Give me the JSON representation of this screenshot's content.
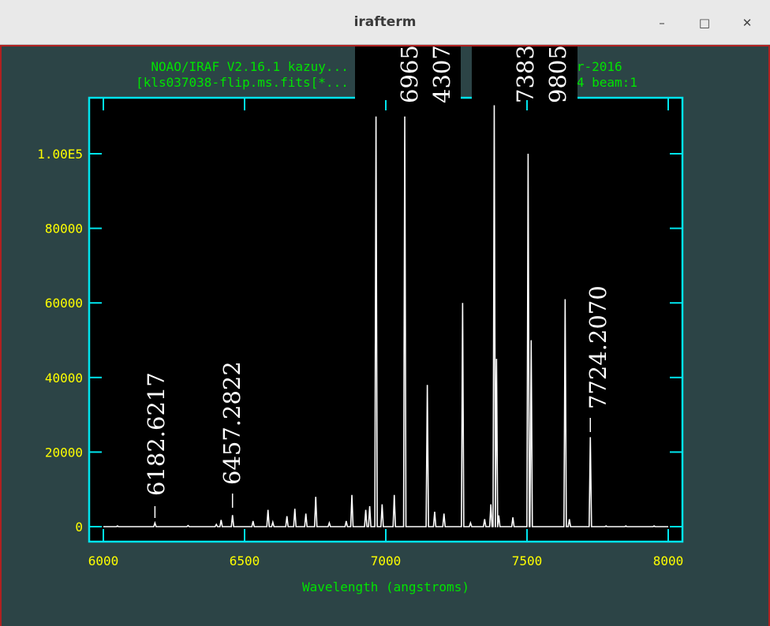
{
  "window": {
    "title": "irafterm",
    "minimize_icon": "minimize-icon",
    "maximize_icon": "maximize-icon",
    "close_icon": "close-icon"
  },
  "colors": {
    "terminal_bg": "#2c4446",
    "plot_bg": "#000000",
    "frame": "#00e5ee",
    "tick_labels": "#ffff00",
    "header_text": "#00e400",
    "spectrum": "#ffffff",
    "label_text": "#ffffff"
  },
  "plot": {
    "header_line1": "NOAO/IRAF V2.16.1 kazuy...                        7-...ar-2016",
    "header_line2": "[kls037038-flip.ms.fits[*...                    c...      4 beam:1",
    "xlabel": "Wavelength (angstroms)",
    "x_ticks": [
      "6000",
      "6500",
      "7000",
      "7500",
      "8000"
    ],
    "y_ticks": [
      "0",
      "20000",
      "40000",
      "60000",
      "80000",
      "1.00E5"
    ],
    "line_labels": [
      {
        "text": "6182.6217",
        "wavelength": 6182.6217
      },
      {
        "text": "6457.2822",
        "wavelength": 6457.2822
      },
      {
        "text": "6965.",
        "wavelength": 6965.4307
      },
      {
        "text": "4307",
        "wavelength": 6965.4307
      },
      {
        "text": "7383.",
        "wavelength": 7383.9805
      },
      {
        "text": "9805",
        "wavelength": 7383.9805
      },
      {
        "text": "7724.2070",
        "wavelength": 7724.207
      }
    ]
  },
  "chart_data": {
    "type": "line",
    "title": "",
    "xlabel": "Wavelength (angstroms)",
    "ylabel": "",
    "xlim": [
      6000,
      8000
    ],
    "ylim": [
      0,
      100000
    ],
    "grid": false,
    "series": [
      {
        "x": [
          6050,
          6182.6,
          6300,
          6400,
          6417,
          6457.3,
          6530,
          6583,
          6600,
          6650,
          6678,
          6717,
          6752,
          6800,
          6860,
          6880,
          6929,
          6943,
          6965.4,
          6987,
          7030,
          7067.2,
          7147,
          7173,
          7206,
          7272,
          7300,
          7350,
          7372,
          7383.98,
          7392,
          7400,
          7450,
          7503.9,
          7514.7,
          7635,
          7650,
          7724.2,
          7780,
          7850,
          7950
        ],
        "y": [
          200,
          1000,
          300,
          600,
          1800,
          3100,
          1500,
          4500,
          1200,
          2800,
          4800,
          3500,
          8000,
          1000,
          1500,
          8500,
          4500,
          5500,
          110000,
          6000,
          8500,
          110000,
          38000,
          4000,
          3500,
          60000,
          1000,
          2000,
          6000,
          113000,
          45000,
          3000,
          2500,
          100000,
          50000,
          61000,
          2000,
          24000,
          200,
          200,
          200
        ]
      }
    ]
  }
}
